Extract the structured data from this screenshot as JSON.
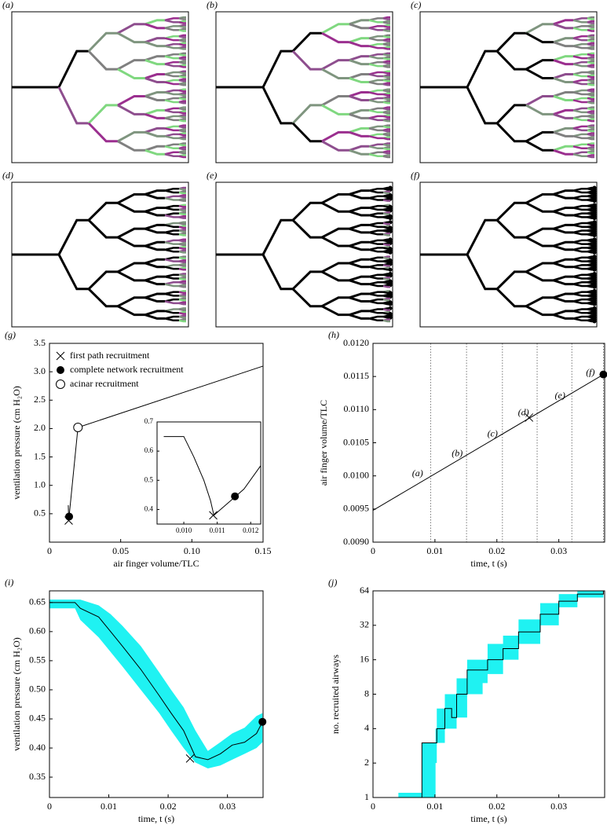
{
  "diagrams": [
    {
      "label": "(a)"
    },
    {
      "label": "(b)"
    },
    {
      "label": "(c)"
    },
    {
      "label": "(d)"
    },
    {
      "label": "(e)"
    },
    {
      "label": "(f)"
    }
  ],
  "chart_data": [
    {
      "type": "line",
      "label": "(g)",
      "xlabel": "air finger volume/TLC",
      "ylabel": "ventilation pressure (cm H₂O)",
      "xlim": [
        0,
        0.15
      ],
      "ylim": [
        0,
        3.5
      ],
      "xticks": [
        0,
        0.05,
        {
          "value": 0.1,
          "label": "0.10"
        },
        0.15
      ],
      "yticks": [
        0.5,
        {
          "value": 1,
          "label": "1.0"
        },
        1.5,
        {
          "value": 2,
          "label": "2.0"
        },
        2.5,
        {
          "value": 3,
          "label": "3.0"
        },
        3.5
      ],
      "legend": "upper left",
      "series": [
        {
          "color": "#000000",
          "x": [
            0.0132,
            0.0135,
            0.02,
            0.15
          ],
          "values": [
            0.65,
            0.38,
            2.02,
            3.1
          ]
        }
      ],
      "points": [
        {
          "name": "first path recruitment",
          "marker": "x",
          "x": 0.0135,
          "y": 0.38
        },
        {
          "name": "complete network recruitment",
          "marker": "dot",
          "x": 0.0138,
          "y": 0.45
        },
        {
          "name": "acinar recruitment",
          "marker": "circle",
          "x": 0.02,
          "y": 2.02
        }
      ],
      "inset": {
        "type": "line",
        "xlim": [
          0.0092,
          0.0123
        ],
        "ylim": [
          0.35,
          0.7
        ],
        "xticks": [
          {
            "value": 0.01,
            "label": "0.010"
          },
          {
            "value": 0.011,
            "label": "0.011"
          },
          {
            "value": 0.012,
            "label": "0.012"
          }
        ],
        "yticks": [
          0.4,
          0.5,
          0.6,
          0.7
        ],
        "series": [
          {
            "color": "#000000",
            "x": [
              0.0094,
              0.01,
              0.0103,
              0.0106,
              0.0108,
              0.0109,
              0.0111,
              0.0113,
              0.0115,
              0.0118,
              0.0123
            ],
            "values": [
              0.65,
              0.65,
              0.58,
              0.5,
              0.43,
              0.38,
              0.4,
              0.42,
              0.44,
              0.47,
              0.55
            ]
          }
        ],
        "points": [
          {
            "marker": "x",
            "x": 0.01088,
            "y": 0.38
          },
          {
            "marker": "dot",
            "x": 0.01153,
            "y": 0.445
          }
        ]
      }
    },
    {
      "type": "line",
      "label": "(h)",
      "xlabel": "time, t (s)",
      "ylabel": "air finger volume/TLC",
      "xlim": [
        0,
        0.0374
      ],
      "ylim": [
        0.009,
        0.012
      ],
      "xticks": [
        0,
        0.01,
        0.02,
        0.03
      ],
      "yticks": [
        {
          "value": 0.009,
          "label": "0.0090"
        },
        {
          "value": 0.0095,
          "label": "0.0095"
        },
        {
          "value": 0.01,
          "label": "0.0100"
        },
        {
          "value": 0.0105,
          "label": "0.0105"
        },
        {
          "value": 0.011,
          "label": "0.0110"
        },
        {
          "value": 0.0115,
          "label": "0.0115"
        },
        {
          "value": 0.012,
          "label": "0.0120"
        }
      ],
      "vlines": [
        0.0093,
        0.0151,
        0.0209,
        0.0265,
        0.0321,
        0.0372
      ],
      "series": [
        {
          "color": "#000000",
          "x": [
            0,
            0.0372
          ],
          "values": [
            0.00948,
            0.01153
          ]
        }
      ],
      "points": [
        {
          "marker": "x",
          "x": 0.0252,
          "y": 0.01088
        },
        {
          "marker": "dot",
          "x": 0.0372,
          "y": 0.01153
        }
      ],
      "annotations": [
        {
          "text": "(a)",
          "x": 0.0072,
          "y": 0.01003
        },
        {
          "text": "(b)",
          "x": 0.0136,
          "y": 0.01033
        },
        {
          "text": "(c)",
          "x": 0.0193,
          "y": 0.01063
        },
        {
          "text": "(d)",
          "x": 0.0243,
          "y": 0.01095
        },
        {
          "text": "(e)",
          "x": 0.0302,
          "y": 0.0112
        },
        {
          "text": "(f)",
          "x": 0.0351,
          "y": 0.01155
        }
      ]
    },
    {
      "type": "line",
      "label": "(i)",
      "xlabel": "time, t (s)",
      "ylabel": "ventilation pressure (cm H₂O)",
      "xlim": [
        0,
        0.036
      ],
      "ylim": [
        0.315,
        0.67
      ],
      "xticks": [
        0,
        0.01,
        0.02,
        0.03
      ],
      "yticks": [
        0.35,
        {
          "value": 0.4,
          "label": "0.40"
        },
        0.45,
        {
          "value": 0.5,
          "label": "0.50"
        },
        0.55,
        {
          "value": 0.6,
          "label": "0.60"
        },
        0.65
      ],
      "band": {
        "color": "#1ff2f2",
        "x": [
          0,
          0.0043,
          0.0052,
          0.0083,
          0.0103,
          0.0123,
          0.0154,
          0.0185,
          0.0205,
          0.0226,
          0.0246,
          0.0267,
          0.0288,
          0.0308,
          0.0329,
          0.0349,
          0.0359
        ],
        "lower": [
          0.64,
          0.64,
          0.62,
          0.59,
          0.565,
          0.54,
          0.5,
          0.46,
          0.43,
          0.4,
          0.375,
          0.365,
          0.37,
          0.38,
          0.39,
          0.4,
          0.41
        ],
        "upper": [
          0.655,
          0.655,
          0.655,
          0.645,
          0.63,
          0.61,
          0.575,
          0.53,
          0.5,
          0.47,
          0.43,
          0.395,
          0.41,
          0.425,
          0.435,
          0.455,
          0.46
        ]
      },
      "series": [
        {
          "color": "#000000",
          "x": [
            0,
            0.0043,
            0.0052,
            0.0083,
            0.0103,
            0.0123,
            0.0154,
            0.0185,
            0.0205,
            0.0226,
            0.0246,
            0.0267,
            0.0288,
            0.0308,
            0.0329,
            0.0349,
            0.0359
          ],
          "values": [
            0.65,
            0.65,
            0.64,
            0.625,
            0.6,
            0.575,
            0.535,
            0.49,
            0.46,
            0.43,
            0.385,
            0.38,
            0.39,
            0.405,
            0.41,
            0.425,
            0.445
          ]
        }
      ],
      "points": [
        {
          "marker": "x",
          "x": 0.0237,
          "y": 0.382
        },
        {
          "marker": "dot",
          "x": 0.0359,
          "y": 0.445
        }
      ]
    },
    {
      "type": "step",
      "label": "(j)",
      "xlabel": "time, t (s)",
      "ylabel": "no. recruited airways",
      "xlim": [
        0,
        0.0374
      ],
      "ylim": [
        1,
        64
      ],
      "yscale": "log",
      "xticks": [
        0,
        0.01,
        0.02,
        0.03
      ],
      "yticks": [
        1,
        2,
        4,
        8,
        16,
        32,
        64
      ],
      "band": {
        "color": "#1ff2f2",
        "x": [
          0.0041,
          0.0076,
          0.0079,
          0.0101,
          0.0103,
          0.0116,
          0.0127,
          0.0135,
          0.0152,
          0.0177,
          0.0185,
          0.021,
          0.0235,
          0.027,
          0.03,
          0.033,
          0.0372
        ],
        "lower": [
          1,
          1,
          1,
          2,
          3,
          4,
          4,
          5,
          8,
          10,
          12,
          16,
          22,
          32,
          46,
          56,
          62
        ],
        "upper": [
          1.1,
          1.1,
          3,
          4,
          6,
          8,
          8,
          11,
          16,
          16,
          22,
          26,
          36,
          50,
          60,
          64,
          64
        ]
      },
      "series": [
        {
          "color": "#000000",
          "x": [
            0.0041,
            0.0076,
            0.0079,
            0.0101,
            0.0103,
            0.0116,
            0.0127,
            0.0135,
            0.0152,
            0.0177,
            0.0185,
            0.021,
            0.0235,
            0.027,
            0.03,
            0.033,
            0.0372
          ],
          "values": [
            null,
            1,
            3,
            3,
            4,
            6,
            5,
            8,
            13,
            13,
            16,
            20,
            28,
            40,
            52,
            60,
            64
          ]
        }
      ]
    }
  ]
}
